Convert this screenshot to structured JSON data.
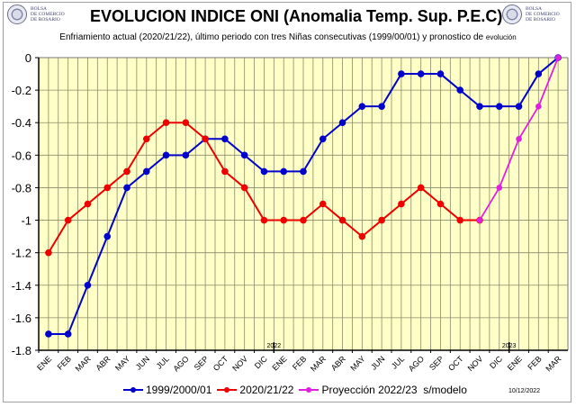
{
  "header": {
    "logo_text": [
      "BOLSA",
      "DE COMERCIO",
      "DE ROSARIO"
    ],
    "title": "EVOLUCION INDICE ONI (Anomalia Temp. Sup. P.E.C)",
    "subtitle": "Enfriamiento actual (2020/21/22),  último periodo con tres Niñas consecutivas (1999/00/01) y pronostico de",
    "subtitle_small": "evolución"
  },
  "footer": {
    "date_stamp": "10/12/2022"
  },
  "chart_data": {
    "type": "line",
    "title": "EVOLUCION INDICE ONI (Anomalia Temp. Sup. P.E.C)",
    "xlabel": "",
    "ylabel": "",
    "categories": [
      "ENE",
      "FEB",
      "MAR",
      "ABR",
      "MAY",
      "JUN",
      "JUL",
      "AGO",
      "SEP",
      "OCT",
      "NOV",
      "DIC",
      "ENE",
      "FEB",
      "MAR",
      "ABR",
      "MAY",
      "JUN",
      "JUL",
      "AGO",
      "SEP",
      "OCT",
      "NOV",
      "DIC",
      "ENE",
      "FEB",
      "MAR"
    ],
    "year_markers": [
      {
        "label": "2022",
        "before_index": 12
      },
      {
        "label": "2023",
        "before_index": 24
      }
    ],
    "ylim": [
      -1.8,
      0
    ],
    "yticks": [
      0,
      -0.2,
      -0.4,
      -0.6,
      -0.8,
      -1,
      -1.2,
      -1.4,
      -1.6,
      -1.8
    ],
    "ytick_labels": [
      "0",
      "-0.2",
      "-0.4",
      "-0.6",
      "-0.8",
      "-1",
      "-1.2",
      "-1.4",
      "-1.6",
      "-1.8"
    ],
    "grid": true,
    "legend_position": "bottom",
    "background_color": "#FFFFC8",
    "series": [
      {
        "name": "1999/2000/01",
        "color": "#0000CC",
        "start_index": 0,
        "values": [
          -1.7,
          -1.7,
          -1.4,
          -1.1,
          -0.8,
          -0.7,
          -0.6,
          -0.6,
          -0.5,
          -0.5,
          -0.6,
          -0.7,
          -0.7,
          -0.7,
          -0.5,
          -0.4,
          -0.3,
          -0.3,
          -0.1,
          -0.1,
          -0.1,
          -0.2,
          -0.3,
          -0.3,
          -0.3,
          -0.1,
          0
        ]
      },
      {
        "name": "2020/21/22",
        "color": "#EE0000",
        "start_index": 0,
        "values": [
          -1.2,
          -1.0,
          -0.9,
          -0.8,
          -0.7,
          -0.5,
          -0.4,
          -0.4,
          -0.5,
          -0.7,
          -0.8,
          -1.0,
          -1.0,
          -1.0,
          -0.9,
          -1.0,
          -1.1,
          -1.0,
          -0.9,
          -0.8,
          -0.9,
          -1.0,
          -1.0
        ]
      },
      {
        "name": "Proyección 2022/23  s/modelo",
        "color": "#E020E0",
        "start_index": 22,
        "values": [
          -1.0,
          -0.8,
          -0.5,
          -0.3,
          0
        ]
      }
    ]
  }
}
